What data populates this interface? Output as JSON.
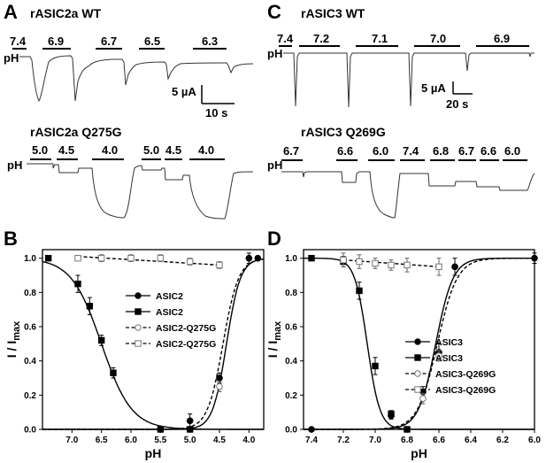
{
  "panel_labels": {
    "a": "A",
    "b": "B",
    "c": "C",
    "d": "D"
  },
  "traces": {
    "a_top": {
      "title": "rASIC2a WT",
      "ph_label": "pH",
      "ph_values": [
        "7.4",
        "6.9",
        "6.7",
        "6.5",
        "6.3"
      ],
      "scale_current": "5 µA",
      "scale_time": "10 s"
    },
    "a_bottom": {
      "title": "rASIC2a Q275G",
      "ph_label": "pH",
      "ph_values": [
        "5.0",
        "4.5",
        "4.0",
        "5.0",
        "4.5",
        "4.0"
      ]
    },
    "c_top": {
      "title": "rASIC3 WT",
      "ph_label": "pH",
      "ph_values": [
        "7.4",
        "7.2",
        "7.1",
        "7.0",
        "6.9"
      ],
      "scale_current": "5 µA",
      "scale_time": "20 s"
    },
    "c_bottom": {
      "title": "rASIC3 Q269G",
      "ph_label": "pH",
      "ph_values": [
        "6.7",
        "6.6",
        "6.0",
        "7.4",
        "6.8",
        "6.7",
        "6.6",
        "6.0"
      ]
    }
  },
  "chart_data": [
    {
      "panel": "B",
      "type": "scatter",
      "xlabel": "pH",
      "ylabel_main": "I / I",
      "ylabel_sub": "max",
      "xlim": [
        7.5,
        3.75
      ],
      "ylim": [
        0,
        1.05
      ],
      "x_ticks": [
        "7.0",
        "6.5",
        "6.0",
        "5.5",
        "5.0",
        "4.5",
        "4.0"
      ],
      "x_tick_values": [
        7.0,
        6.5,
        6.0,
        5.5,
        5.0,
        4.5,
        4.0
      ],
      "y_ticks": [
        "0.0",
        "0.2",
        "0.4",
        "0.6",
        "0.8",
        "1.0"
      ],
      "y_tick_values": [
        0.0,
        0.2,
        0.4,
        0.6,
        0.8,
        1.0
      ],
      "series": [
        {
          "name": "ASIC2",
          "marker": "circle",
          "style": "solid",
          "x": [
            5.0,
            4.5,
            4.0,
            3.85
          ],
          "y": [
            0.05,
            0.3,
            1.0,
            1.0
          ],
          "err": [
            0.04,
            0.03,
            0.03,
            0.0
          ],
          "fit": {
            "ph50": 4.38,
            "n": 3.7,
            "dir": "activation"
          }
        },
        {
          "name": "ASIC2",
          "marker": "square",
          "style": "solid",
          "x": [
            7.4,
            6.9,
            6.7,
            6.5,
            6.3,
            5.5,
            5.0
          ],
          "y": [
            1.0,
            0.85,
            0.72,
            0.52,
            0.33,
            0.0,
            0.0
          ],
          "err": [
            0.0,
            0.05,
            0.05,
            0.03,
            0.03,
            0.0,
            0.0
          ],
          "fit": {
            "ph50": 6.5,
            "n": 1.7,
            "dir": "inhibition"
          }
        },
        {
          "name": "ASIC2-Q275G",
          "marker": "circle-open",
          "style": "dashed",
          "x": [
            4.5
          ],
          "y": [
            0.25
          ],
          "err": [
            0.03
          ],
          "fit": {
            "ph50": 4.44,
            "n": 3.3,
            "dir": "activation"
          }
        },
        {
          "name": "ASIC2-Q275G",
          "marker": "square-open",
          "style": "dashed",
          "x": [
            6.9,
            6.5,
            6.0,
            5.5,
            5.0,
            4.5
          ],
          "y": [
            1.0,
            1.0,
            1.0,
            1.0,
            0.98,
            0.96
          ],
          "err": [
            0.01,
            0.02,
            0.02,
            0.02,
            0.02,
            0.02
          ],
          "fit": {
            "type": "linear",
            "x0": 6.9,
            "y0": 1.01,
            "x1": 4.5,
            "y1": 0.96
          }
        }
      ],
      "legend_position": "center-right"
    },
    {
      "panel": "D",
      "type": "scatter",
      "xlabel": "pH",
      "ylabel_main": "I / I",
      "ylabel_sub": "max",
      "xlim": [
        7.45,
        6.0
      ],
      "ylim": [
        0,
        1.05
      ],
      "x_ticks": [
        "7.4",
        "7.2",
        "7.0",
        "6.8",
        "6.6",
        "6.4",
        "6.2",
        "6.0"
      ],
      "x_tick_values": [
        7.4,
        7.2,
        7.0,
        6.8,
        6.6,
        6.4,
        6.2,
        6.0
      ],
      "y_ticks": [
        "0.0",
        "0.2",
        "0.4",
        "0.6",
        "0.8",
        "1.0"
      ],
      "y_tick_values": [
        0.0,
        0.2,
        0.4,
        0.6,
        0.8,
        1.0
      ],
      "series": [
        {
          "name": "ASIC3",
          "marker": "circle",
          "style": "solid",
          "x": [
            7.4,
            6.9,
            6.7,
            6.6,
            6.5,
            6.0
          ],
          "y": [
            0.0,
            0.08,
            0.22,
            0.45,
            0.95,
            1.0
          ],
          "err": [
            0.0,
            0.02,
            0.03,
            0.05,
            0.05,
            0.03
          ],
          "fit": {
            "ph50": 6.62,
            "n": 8.0,
            "dir": "activation"
          }
        },
        {
          "name": "ASIC3",
          "marker": "square",
          "style": "solid",
          "x": [
            7.4,
            7.2,
            7.1,
            7.0,
            6.9,
            6.8
          ],
          "y": [
            1.0,
            0.98,
            0.81,
            0.37,
            0.09,
            0.0
          ],
          "err": [
            0.0,
            0.03,
            0.05,
            0.05,
            0.02,
            0.0
          ],
          "fit": {
            "ph50": 7.05,
            "n": 11.0,
            "dir": "inhibition"
          }
        },
        {
          "name": "ASIC3-Q269G",
          "marker": "circle-open",
          "style": "dashed",
          "x": [
            6.7,
            6.6
          ],
          "y": [
            0.18,
            0.43
          ],
          "err": [
            0.03,
            0.03
          ],
          "fit": {
            "ph50": 6.61,
            "n": 7.0,
            "dir": "activation"
          }
        },
        {
          "name": "ASIC3-Q269G",
          "marker": "square-open",
          "style": "dashed",
          "x": [
            7.2,
            7.1,
            7.0,
            6.9,
            6.8,
            6.6
          ],
          "y": [
            0.99,
            0.98,
            0.97,
            0.96,
            0.96,
            0.95
          ],
          "err": [
            0.04,
            0.04,
            0.03,
            0.03,
            0.04,
            0.05
          ],
          "fit": {
            "type": "linear",
            "x0": 7.2,
            "y0": 0.99,
            "x1": 6.6,
            "y1": 0.95
          }
        }
      ],
      "legend_position": "center-right"
    }
  ]
}
